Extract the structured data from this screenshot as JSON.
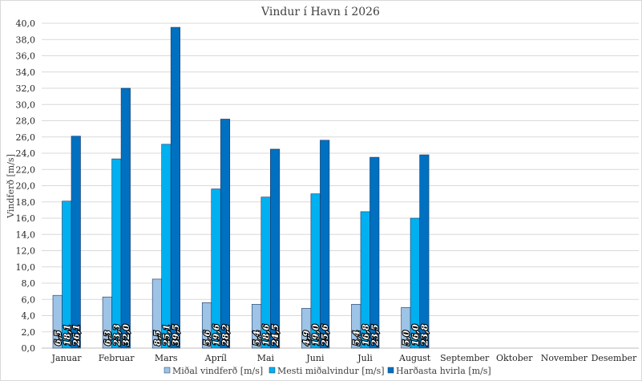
{
  "chart_data": {
    "type": "bar",
    "title": "Vindur í Havn í 2026",
    "xlabel": "",
    "ylabel": "Vindferð [m/s]",
    "ylim": [
      0,
      40
    ],
    "ytick_step": 2,
    "ytick_labels": [
      "0,0",
      "2,0",
      "4,0",
      "6,0",
      "8,0",
      "10,0",
      "12,0",
      "14,0",
      "16,0",
      "18,0",
      "20,0",
      "22,0",
      "24,0",
      "26,0",
      "28,0",
      "30,0",
      "32,0",
      "34,0",
      "36,0",
      "38,0",
      "40,0"
    ],
    "grid": true,
    "legend_position": "bottom",
    "categories": [
      "Januar",
      "Februar",
      "Mars",
      "Apríl",
      "Mai",
      "Juni",
      "Juli",
      "August",
      "September",
      "Oktober",
      "November",
      "Desember"
    ],
    "series": [
      {
        "name": "Miðal vindferð [m/s]",
        "color": "#9dc3e6",
        "values": [
          6.5,
          6.3,
          8.5,
          5.6,
          5.4,
          4.9,
          5.4,
          5.0,
          null,
          null,
          null,
          null
        ],
        "labels": [
          "6,5",
          "6,3",
          "8,5",
          "5,6",
          "5,4",
          "4,9",
          "5,4",
          "5,0",
          "",
          "",
          "",
          ""
        ]
      },
      {
        "name": "Mesti miðalvindur [m/s]",
        "color": "#00b0f0",
        "values": [
          18.1,
          23.3,
          25.1,
          19.6,
          18.6,
          19.0,
          16.8,
          16.0,
          null,
          null,
          null,
          null
        ],
        "labels": [
          "18,1",
          "23,3",
          "25,1",
          "19,6",
          "18,6",
          "19,0",
          "16,8",
          "16,0",
          "",
          "",
          "",
          ""
        ]
      },
      {
        "name": "Harðasta hvirla [m/s]",
        "color": "#0070c0",
        "values": [
          26.1,
          32.0,
          39.5,
          28.2,
          24.5,
          25.6,
          23.5,
          23.8,
          null,
          null,
          null,
          null
        ],
        "labels": [
          "26,1",
          "32,0",
          "39,5",
          "28,2",
          "24,5",
          "25,6",
          "23,5",
          "23,8",
          "",
          "",
          "",
          ""
        ]
      }
    ]
  }
}
